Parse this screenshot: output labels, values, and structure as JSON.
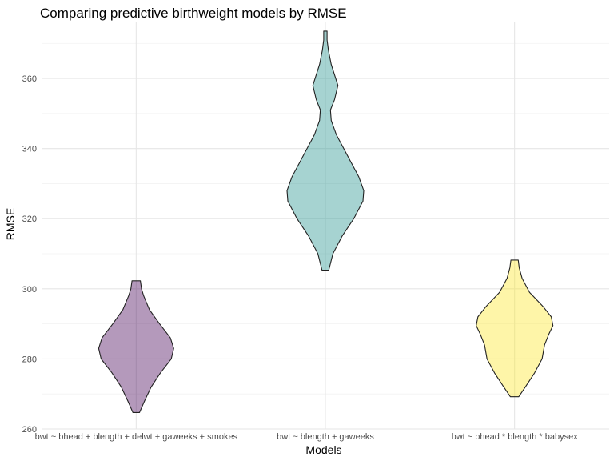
{
  "chart_data": {
    "type": "violin",
    "title": "Comparing predictive birthweight models by RMSE",
    "xlabel": "Models",
    "ylabel": "RMSE",
    "ylim": [
      260,
      376
    ],
    "y_ticks": [
      260,
      280,
      300,
      320,
      340,
      360
    ],
    "grid": true,
    "legend": "none",
    "categories": [
      "bwt ~ bhead + blength + delwt + gaweeks + smokes",
      "bwt ~ blength + gaweeks",
      "bwt ~ bhead * blength * babysex"
    ],
    "series": [
      {
        "color": "#440154",
        "min": 264.7,
        "max": 302.3,
        "profile": [
          [
            264.7,
            2.0
          ],
          [
            268,
            5.0
          ],
          [
            272,
            9.0
          ],
          [
            276,
            14.5
          ],
          [
            280,
            21.0
          ],
          [
            283,
            22.5
          ],
          [
            286,
            20.5
          ],
          [
            290,
            14.0
          ],
          [
            294,
            8.0
          ],
          [
            298,
            4.5
          ],
          [
            300,
            3.2
          ],
          [
            302.3,
            2.5
          ]
        ]
      },
      {
        "color": "#21908C",
        "min": 305.3,
        "max": 373.5,
        "profile": [
          [
            305.3,
            2.0
          ],
          [
            310,
            4.5
          ],
          [
            315,
            10.0
          ],
          [
            320,
            17.0
          ],
          [
            325,
            22.5
          ],
          [
            328,
            23.0
          ],
          [
            332,
            20.0
          ],
          [
            336,
            15.5
          ],
          [
            340,
            11.0
          ],
          [
            344,
            6.5
          ],
          [
            348,
            3.5
          ],
          [
            351,
            3.0
          ],
          [
            354,
            5.5
          ],
          [
            358,
            7.5
          ],
          [
            361,
            5.5
          ],
          [
            364,
            3.5
          ],
          [
            368,
            1.8
          ],
          [
            371,
            1.0
          ],
          [
            373.5,
            1.0
          ]
        ]
      },
      {
        "color": "#FDE725",
        "min": 269.2,
        "max": 308.2,
        "profile": [
          [
            269.2,
            2.5
          ],
          [
            272,
            6.5
          ],
          [
            276,
            12.0
          ],
          [
            280,
            16.5
          ],
          [
            284,
            18.0
          ],
          [
            287,
            20.5
          ],
          [
            289.5,
            23.0
          ],
          [
            292,
            22.0
          ],
          [
            295,
            17.0
          ],
          [
            299,
            9.0
          ],
          [
            303,
            4.5
          ],
          [
            306,
            2.8
          ],
          [
            308.2,
            2.2
          ]
        ]
      }
    ]
  }
}
